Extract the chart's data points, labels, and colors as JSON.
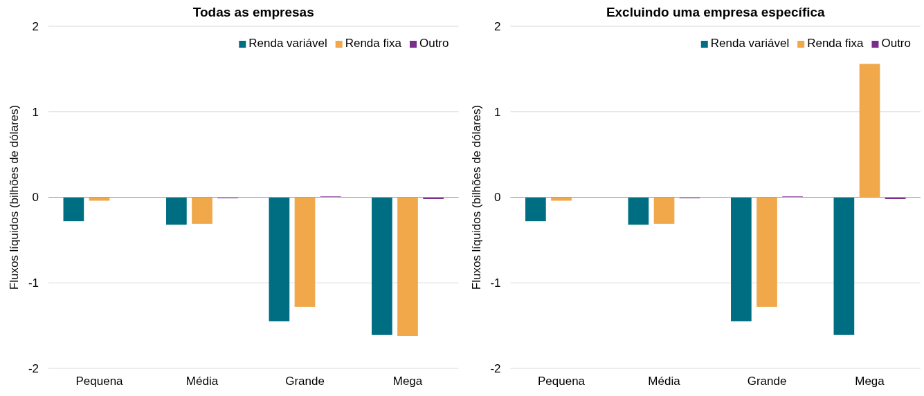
{
  "chart_data": [
    {
      "type": "bar",
      "title": "Todas as empresas",
      "ylabel": "Fluxos líquidos (bilhões de dólares)",
      "categories": [
        "Pequena",
        "Média",
        "Grande",
        "Mega"
      ],
      "series": [
        {
          "name": "Renda variável",
          "color": "#006e82",
          "values": [
            -0.28,
            -0.32,
            -1.45,
            -1.61
          ]
        },
        {
          "name": "Renda fixa",
          "color": "#f0a84b",
          "values": [
            -0.04,
            -0.31,
            -1.28,
            -1.62
          ]
        },
        {
          "name": "Outro",
          "color": "#7b2d8b",
          "values": [
            0,
            -0.01,
            0.01,
            -0.02
          ]
        }
      ],
      "ylim": [
        -2,
        2
      ],
      "yticks": [
        -2,
        -1,
        0,
        1,
        2
      ],
      "grid": "y",
      "legend": "top right"
    },
    {
      "type": "bar",
      "title": "Excluindo uma empresa específica",
      "ylabel": "Fluxos líquidos (bilhões de dólares)",
      "categories": [
        "Pequena",
        "Média",
        "Grande",
        "Mega"
      ],
      "series": [
        {
          "name": "Renda variável",
          "color": "#006e82",
          "values": [
            -0.28,
            -0.32,
            -1.45,
            -1.61
          ]
        },
        {
          "name": "Renda fixa",
          "color": "#f0a84b",
          "values": [
            -0.04,
            -0.31,
            -1.28,
            1.56
          ]
        },
        {
          "name": "Outro",
          "color": "#7b2d8b",
          "values": [
            0,
            -0.01,
            0.01,
            -0.02
          ]
        }
      ],
      "ylim": [
        -2,
        2
      ],
      "yticks": [
        -2,
        -1,
        0,
        1,
        2
      ],
      "grid": "y",
      "legend": "top right"
    }
  ]
}
